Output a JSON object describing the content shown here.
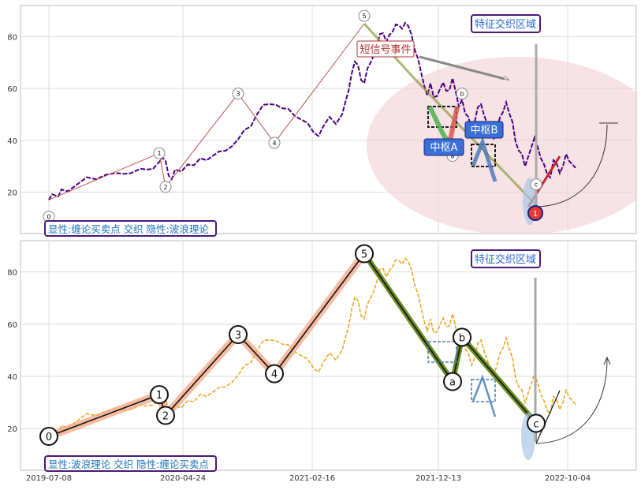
{
  "chart_data": [
    {
      "type": "line",
      "ylim": [
        4,
        92
      ],
      "yticks": [
        20,
        40,
        60,
        80
      ],
      "grid": true,
      "annotation_label": "显性:缠论买卖点 交织 隐性:波浪理论",
      "feature_region_label": "特征交织区域",
      "sms_event_label": "短信号事件",
      "zhongshu_labels": [
        "中枢A",
        "中枢B"
      ],
      "wave_labels": [
        "0",
        "1",
        "2",
        "3",
        "4",
        "5",
        "a",
        "b",
        "c"
      ],
      "buy_point_label": "1",
      "price_path": [
        [
          0,
          18
        ],
        [
          2,
          19.5
        ],
        [
          6,
          18
        ],
        [
          8,
          20
        ],
        [
          12,
          21
        ],
        [
          18,
          23
        ],
        [
          24,
          25
        ],
        [
          30,
          26
        ],
        [
          36,
          27
        ],
        [
          42,
          27
        ],
        [
          48,
          26
        ],
        [
          52,
          28
        ],
        [
          58,
          29
        ],
        [
          62,
          28
        ],
        [
          66,
          30
        ],
        [
          70,
          32
        ],
        [
          72,
          33
        ],
        [
          74,
          31
        ],
        [
          76,
          27
        ],
        [
          78,
          25
        ],
        [
          80,
          28
        ],
        [
          84,
          29
        ],
        [
          88,
          31
        ],
        [
          92,
          30
        ],
        [
          96,
          32
        ],
        [
          100,
          33
        ],
        [
          104,
          34
        ],
        [
          108,
          35
        ],
        [
          112,
          37
        ],
        [
          116,
          38
        ],
        [
          120,
          40
        ],
        [
          124,
          43
        ],
        [
          128,
          46
        ],
        [
          132,
          50
        ],
        [
          136,
          53
        ],
        [
          140,
          55
        ],
        [
          144,
          54
        ],
        [
          148,
          52
        ],
        [
          152,
          51
        ],
        [
          156,
          50
        ],
        [
          160,
          48
        ],
        [
          164,
          46
        ],
        [
          168,
          44
        ],
        [
          171,
          42
        ],
        [
          174,
          45
        ],
        [
          178,
          48
        ],
        [
          182,
          47
        ],
        [
          186,
          50
        ],
        [
          188,
          54
        ],
        [
          190,
          60
        ],
        [
          192,
          66
        ],
        [
          194,
          70
        ],
        [
          196,
          68
        ],
        [
          198,
          64
        ],
        [
          200,
          62
        ],
        [
          202,
          67
        ],
        [
          204,
          71
        ],
        [
          206,
          73
        ],
        [
          208,
          76
        ],
        [
          210,
          80
        ],
        [
          212,
          82
        ],
        [
          214,
          78
        ],
        [
          216,
          80
        ],
        [
          218,
          83
        ],
        [
          220,
          85
        ],
        [
          222,
          84
        ],
        [
          224,
          82
        ],
        [
          226,
          86
        ],
        [
          228,
          84
        ],
        [
          230,
          80
        ],
        [
          232,
          76
        ],
        [
          234,
          72
        ],
        [
          236,
          66
        ],
        [
          238,
          60
        ],
        [
          240,
          58
        ],
        [
          242,
          62
        ],
        [
          244,
          56
        ],
        [
          246,
          58
        ],
        [
          248,
          60
        ],
        [
          250,
          62
        ],
        [
          252,
          58
        ],
        [
          254,
          60
        ],
        [
          256,
          64
        ],
        [
          258,
          58
        ],
        [
          260,
          54
        ],
        [
          262,
          56
        ],
        [
          264,
          50
        ],
        [
          266,
          48
        ],
        [
          268,
          45
        ],
        [
          270,
          47
        ],
        [
          272,
          52
        ],
        [
          274,
          55
        ],
        [
          276,
          50
        ],
        [
          278,
          46
        ],
        [
          280,
          42
        ],
        [
          282,
          41
        ],
        [
          284,
          44
        ],
        [
          286,
          48
        ],
        [
          288,
          52
        ],
        [
          290,
          55
        ],
        [
          292,
          50
        ],
        [
          294,
          46
        ],
        [
          296,
          40
        ],
        [
          298,
          36
        ],
        [
          300,
          34
        ],
        [
          302,
          31
        ],
        [
          304,
          34
        ],
        [
          306,
          37
        ],
        [
          308,
          40
        ],
        [
          310,
          38
        ],
        [
          312,
          33
        ],
        [
          314,
          30
        ],
        [
          316,
          28
        ],
        [
          318,
          26
        ],
        [
          320,
          32
        ],
        [
          322,
          30
        ],
        [
          324,
          28
        ],
        [
          326,
          30
        ],
        [
          328,
          34
        ],
        [
          330,
          33
        ],
        [
          332,
          31
        ],
        [
          334,
          29
        ]
      ],
      "wave_pivots": [
        [
          "0",
          0,
          10.5
        ],
        [
          "1",
          70,
          35
        ],
        [
          "2",
          74,
          22
        ],
        [
          "3",
          120,
          58
        ],
        [
          "4",
          143,
          39
        ],
        [
          "5",
          200,
          88
        ],
        [
          "a",
          256,
          34
        ],
        [
          "b",
          262,
          58
        ],
        [
          "c",
          309,
          23
        ]
      ]
    },
    {
      "type": "line",
      "ylim": [
        4,
        92
      ],
      "yticks": [
        20,
        40,
        60,
        80
      ],
      "x_ticks": [
        "2019-07-08",
        "2020-04-24",
        "2021-02-16",
        "2021-12-13",
        "2022-10-04"
      ],
      "grid": true,
      "annotation_label": "显性:波浪理论 交织 隐性:缠论买卖点",
      "feature_region_label": "特征交织区域",
      "wave_labels": [
        "0",
        "1",
        "2",
        "3",
        "4",
        "5",
        "a",
        "b",
        "c"
      ],
      "wave_pivots": [
        [
          "0",
          0,
          17
        ],
        [
          "1",
          70,
          33
        ],
        [
          "2",
          74,
          25
        ],
        [
          "3",
          120,
          56
        ],
        [
          "4",
          143,
          41
        ],
        [
          "5",
          200,
          87
        ],
        [
          "a",
          256,
          38
        ],
        [
          "b",
          262,
          55
        ],
        [
          "c",
          309,
          22
        ]
      ]
    }
  ]
}
